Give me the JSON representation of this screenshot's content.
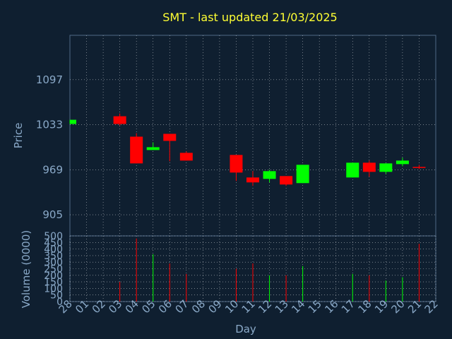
{
  "chart_data": [
    {
      "type": "candlestick",
      "title": "SMT - last updated 21/03/2025",
      "ylabel": "Price",
      "ylim": [
        875,
        1160
      ],
      "yticks": [
        905,
        969,
        1033,
        1097
      ],
      "grid": true,
      "colors": {
        "up": "#00ff00",
        "down": "#ff0000",
        "background": "#0f1f30",
        "grid": "#ffffff",
        "axis_text": "#8aa9c8",
        "title": "#ffff33"
      },
      "candles": [
        {
          "day": "28",
          "open": 1034,
          "close": 1040,
          "high": 1040,
          "low": 1034
        },
        {
          "day": "03",
          "open": 1045,
          "close": 1034,
          "high": 1049,
          "low": 1032
        },
        {
          "day": "04",
          "open": 1016,
          "close": 978,
          "high": 1021,
          "low": 978
        },
        {
          "day": "05",
          "open": 997,
          "close": 1001,
          "high": 1008,
          "low": 997
        },
        {
          "day": "06",
          "open": 1020,
          "close": 1010,
          "high": 1020,
          "low": 981
        },
        {
          "day": "07",
          "open": 993,
          "close": 982,
          "high": 995,
          "low": 982
        },
        {
          "day": "10",
          "open": 990,
          "close": 965,
          "high": 990,
          "low": 953
        },
        {
          "day": "11",
          "open": 958,
          "close": 951,
          "high": 967,
          "low": 946
        },
        {
          "day": "12",
          "open": 956,
          "close": 967,
          "high": 969,
          "low": 951
        },
        {
          "day": "13",
          "open": 960,
          "close": 948,
          "high": 960,
          "low": 946
        },
        {
          "day": "14",
          "open": 950,
          "close": 976,
          "high": 976,
          "low": 950
        },
        {
          "day": "17",
          "open": 958,
          "close": 979,
          "high": 979,
          "low": 958
        },
        {
          "day": "18",
          "open": 979,
          "close": 966,
          "high": 982,
          "low": 959
        },
        {
          "day": "19",
          "open": 966,
          "close": 978,
          "high": 978,
          "low": 963
        },
        {
          "day": "20",
          "open": 977,
          "close": 982,
          "high": 986,
          "low": 974
        },
        {
          "day": "21",
          "open": 973,
          "close": 972,
          "high": 976,
          "low": 970
        }
      ]
    },
    {
      "type": "bar",
      "ylabel": "Volume (0000)",
      "xlabel": "Day",
      "ylim": [
        0,
        500
      ],
      "yticks": [
        0,
        50,
        100,
        150,
        200,
        250,
        300,
        350,
        400,
        450,
        500
      ],
      "grid": true,
      "categories": [
        "28",
        "01",
        "02",
        "03",
        "04",
        "05",
        "06",
        "07",
        "08",
        "09",
        "10",
        "11",
        "12",
        "13",
        "14",
        "15",
        "16",
        "17",
        "18",
        "19",
        "20",
        "21",
        "22"
      ],
      "bars": [
        {
          "day": "03",
          "value": 150,
          "direction": "down"
        },
        {
          "day": "04",
          "value": 480,
          "direction": "down"
        },
        {
          "day": "05",
          "value": 360,
          "direction": "up"
        },
        {
          "day": "06",
          "value": 290,
          "direction": "down"
        },
        {
          "day": "07",
          "value": 210,
          "direction": "down"
        },
        {
          "day": "10",
          "value": 250,
          "direction": "down"
        },
        {
          "day": "11",
          "value": 290,
          "direction": "down"
        },
        {
          "day": "12",
          "value": 200,
          "direction": "up"
        },
        {
          "day": "13",
          "value": 200,
          "direction": "down"
        },
        {
          "day": "14",
          "value": 270,
          "direction": "up"
        },
        {
          "day": "17",
          "value": 210,
          "direction": "up"
        },
        {
          "day": "18",
          "value": 200,
          "direction": "down"
        },
        {
          "day": "19",
          "value": 160,
          "direction": "up"
        },
        {
          "day": "20",
          "value": 185,
          "direction": "up"
        },
        {
          "day": "21",
          "value": 440,
          "direction": "down"
        }
      ]
    }
  ]
}
